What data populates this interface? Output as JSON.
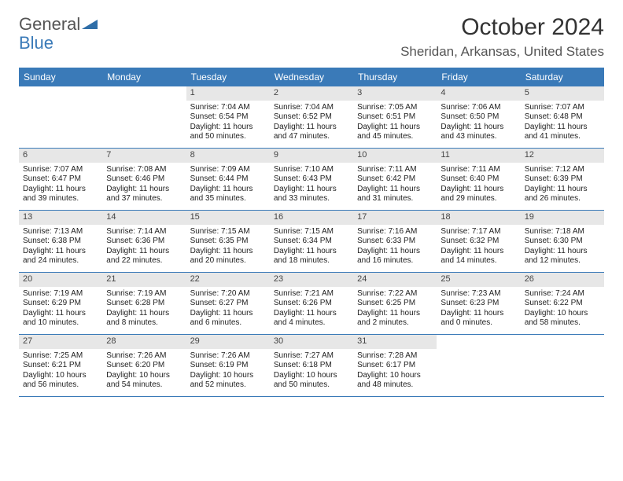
{
  "brand": {
    "part1": "General",
    "part2": "Blue"
  },
  "title": "October 2024",
  "location": "Sheridan, Arkansas, United States",
  "colors": {
    "header_bg": "#3a7ab8",
    "header_text": "#ffffff",
    "daynum_bg": "#e7e7e7",
    "text": "#222222",
    "border": "#3a7ab8"
  },
  "weekdays": [
    "Sunday",
    "Monday",
    "Tuesday",
    "Wednesday",
    "Thursday",
    "Friday",
    "Saturday"
  ],
  "weeks": [
    [
      null,
      null,
      {
        "n": "1",
        "sr": "Sunrise: 7:04 AM",
        "ss": "Sunset: 6:54 PM",
        "dl": "Daylight: 11 hours and 50 minutes."
      },
      {
        "n": "2",
        "sr": "Sunrise: 7:04 AM",
        "ss": "Sunset: 6:52 PM",
        "dl": "Daylight: 11 hours and 47 minutes."
      },
      {
        "n": "3",
        "sr": "Sunrise: 7:05 AM",
        "ss": "Sunset: 6:51 PM",
        "dl": "Daylight: 11 hours and 45 minutes."
      },
      {
        "n": "4",
        "sr": "Sunrise: 7:06 AM",
        "ss": "Sunset: 6:50 PM",
        "dl": "Daylight: 11 hours and 43 minutes."
      },
      {
        "n": "5",
        "sr": "Sunrise: 7:07 AM",
        "ss": "Sunset: 6:48 PM",
        "dl": "Daylight: 11 hours and 41 minutes."
      }
    ],
    [
      {
        "n": "6",
        "sr": "Sunrise: 7:07 AM",
        "ss": "Sunset: 6:47 PM",
        "dl": "Daylight: 11 hours and 39 minutes."
      },
      {
        "n": "7",
        "sr": "Sunrise: 7:08 AM",
        "ss": "Sunset: 6:46 PM",
        "dl": "Daylight: 11 hours and 37 minutes."
      },
      {
        "n": "8",
        "sr": "Sunrise: 7:09 AM",
        "ss": "Sunset: 6:44 PM",
        "dl": "Daylight: 11 hours and 35 minutes."
      },
      {
        "n": "9",
        "sr": "Sunrise: 7:10 AM",
        "ss": "Sunset: 6:43 PM",
        "dl": "Daylight: 11 hours and 33 minutes."
      },
      {
        "n": "10",
        "sr": "Sunrise: 7:11 AM",
        "ss": "Sunset: 6:42 PM",
        "dl": "Daylight: 11 hours and 31 minutes."
      },
      {
        "n": "11",
        "sr": "Sunrise: 7:11 AM",
        "ss": "Sunset: 6:40 PM",
        "dl": "Daylight: 11 hours and 29 minutes."
      },
      {
        "n": "12",
        "sr": "Sunrise: 7:12 AM",
        "ss": "Sunset: 6:39 PM",
        "dl": "Daylight: 11 hours and 26 minutes."
      }
    ],
    [
      {
        "n": "13",
        "sr": "Sunrise: 7:13 AM",
        "ss": "Sunset: 6:38 PM",
        "dl": "Daylight: 11 hours and 24 minutes."
      },
      {
        "n": "14",
        "sr": "Sunrise: 7:14 AM",
        "ss": "Sunset: 6:36 PM",
        "dl": "Daylight: 11 hours and 22 minutes."
      },
      {
        "n": "15",
        "sr": "Sunrise: 7:15 AM",
        "ss": "Sunset: 6:35 PM",
        "dl": "Daylight: 11 hours and 20 minutes."
      },
      {
        "n": "16",
        "sr": "Sunrise: 7:15 AM",
        "ss": "Sunset: 6:34 PM",
        "dl": "Daylight: 11 hours and 18 minutes."
      },
      {
        "n": "17",
        "sr": "Sunrise: 7:16 AM",
        "ss": "Sunset: 6:33 PM",
        "dl": "Daylight: 11 hours and 16 minutes."
      },
      {
        "n": "18",
        "sr": "Sunrise: 7:17 AM",
        "ss": "Sunset: 6:32 PM",
        "dl": "Daylight: 11 hours and 14 minutes."
      },
      {
        "n": "19",
        "sr": "Sunrise: 7:18 AM",
        "ss": "Sunset: 6:30 PM",
        "dl": "Daylight: 11 hours and 12 minutes."
      }
    ],
    [
      {
        "n": "20",
        "sr": "Sunrise: 7:19 AM",
        "ss": "Sunset: 6:29 PM",
        "dl": "Daylight: 11 hours and 10 minutes."
      },
      {
        "n": "21",
        "sr": "Sunrise: 7:19 AM",
        "ss": "Sunset: 6:28 PM",
        "dl": "Daylight: 11 hours and 8 minutes."
      },
      {
        "n": "22",
        "sr": "Sunrise: 7:20 AM",
        "ss": "Sunset: 6:27 PM",
        "dl": "Daylight: 11 hours and 6 minutes."
      },
      {
        "n": "23",
        "sr": "Sunrise: 7:21 AM",
        "ss": "Sunset: 6:26 PM",
        "dl": "Daylight: 11 hours and 4 minutes."
      },
      {
        "n": "24",
        "sr": "Sunrise: 7:22 AM",
        "ss": "Sunset: 6:25 PM",
        "dl": "Daylight: 11 hours and 2 minutes."
      },
      {
        "n": "25",
        "sr": "Sunrise: 7:23 AM",
        "ss": "Sunset: 6:23 PM",
        "dl": "Daylight: 11 hours and 0 minutes."
      },
      {
        "n": "26",
        "sr": "Sunrise: 7:24 AM",
        "ss": "Sunset: 6:22 PM",
        "dl": "Daylight: 10 hours and 58 minutes."
      }
    ],
    [
      {
        "n": "27",
        "sr": "Sunrise: 7:25 AM",
        "ss": "Sunset: 6:21 PM",
        "dl": "Daylight: 10 hours and 56 minutes."
      },
      {
        "n": "28",
        "sr": "Sunrise: 7:26 AM",
        "ss": "Sunset: 6:20 PM",
        "dl": "Daylight: 10 hours and 54 minutes."
      },
      {
        "n": "29",
        "sr": "Sunrise: 7:26 AM",
        "ss": "Sunset: 6:19 PM",
        "dl": "Daylight: 10 hours and 52 minutes."
      },
      {
        "n": "30",
        "sr": "Sunrise: 7:27 AM",
        "ss": "Sunset: 6:18 PM",
        "dl": "Daylight: 10 hours and 50 minutes."
      },
      {
        "n": "31",
        "sr": "Sunrise: 7:28 AM",
        "ss": "Sunset: 6:17 PM",
        "dl": "Daylight: 10 hours and 48 minutes."
      },
      null,
      null
    ]
  ]
}
